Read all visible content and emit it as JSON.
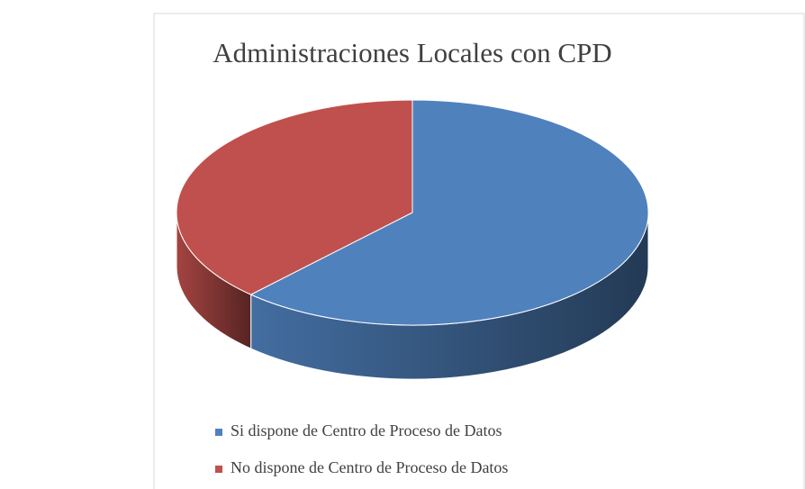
{
  "chart_data": {
    "type": "pie",
    "title": "Administraciones Locales con CPD",
    "categories": [
      "Si dispone de Centro de Proceso de Datos",
      "No dispone de Centro de Proceso de Datos"
    ],
    "values": [
      62,
      38
    ],
    "colors": [
      "#4f81bd",
      "#c0504d"
    ],
    "legend": "bottom"
  }
}
